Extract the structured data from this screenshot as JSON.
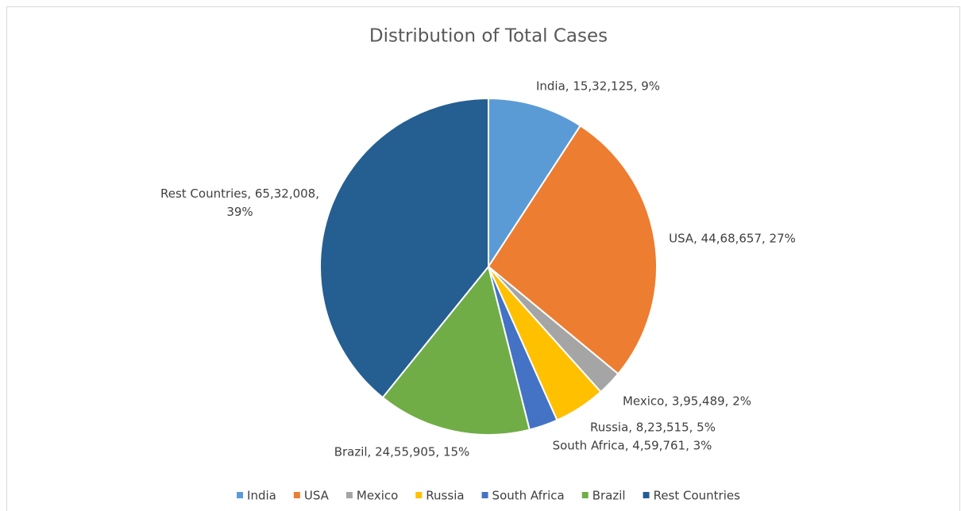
{
  "chart_data": {
    "type": "pie",
    "title": "Distribution of Total Cases",
    "categories": [
      "India",
      "USA",
      "Mexico",
      "Russia",
      "South Africa",
      "Brazil",
      "Rest Countries"
    ],
    "values": [
      1532125,
      4468657,
      395489,
      823515,
      459761,
      2455905,
      6532008
    ],
    "value_labels": [
      "India, 15,32,125, 9%",
      "USA, 44,68,657, 27%",
      "Mexico, 3,95,489, 2%",
      "Russia, 8,23,515, 5%",
      "South Africa, 4,59,761, 3%",
      "Brazil, 24,55,905, 15%",
      "Rest Countries, 65,32,008, 39%"
    ],
    "colors": [
      "#5b9bd5",
      "#ed7d31",
      "#a5a5a5",
      "#ffc000",
      "#4472c4",
      "#70ad47",
      "#255e91"
    ],
    "legend": "bottom"
  }
}
